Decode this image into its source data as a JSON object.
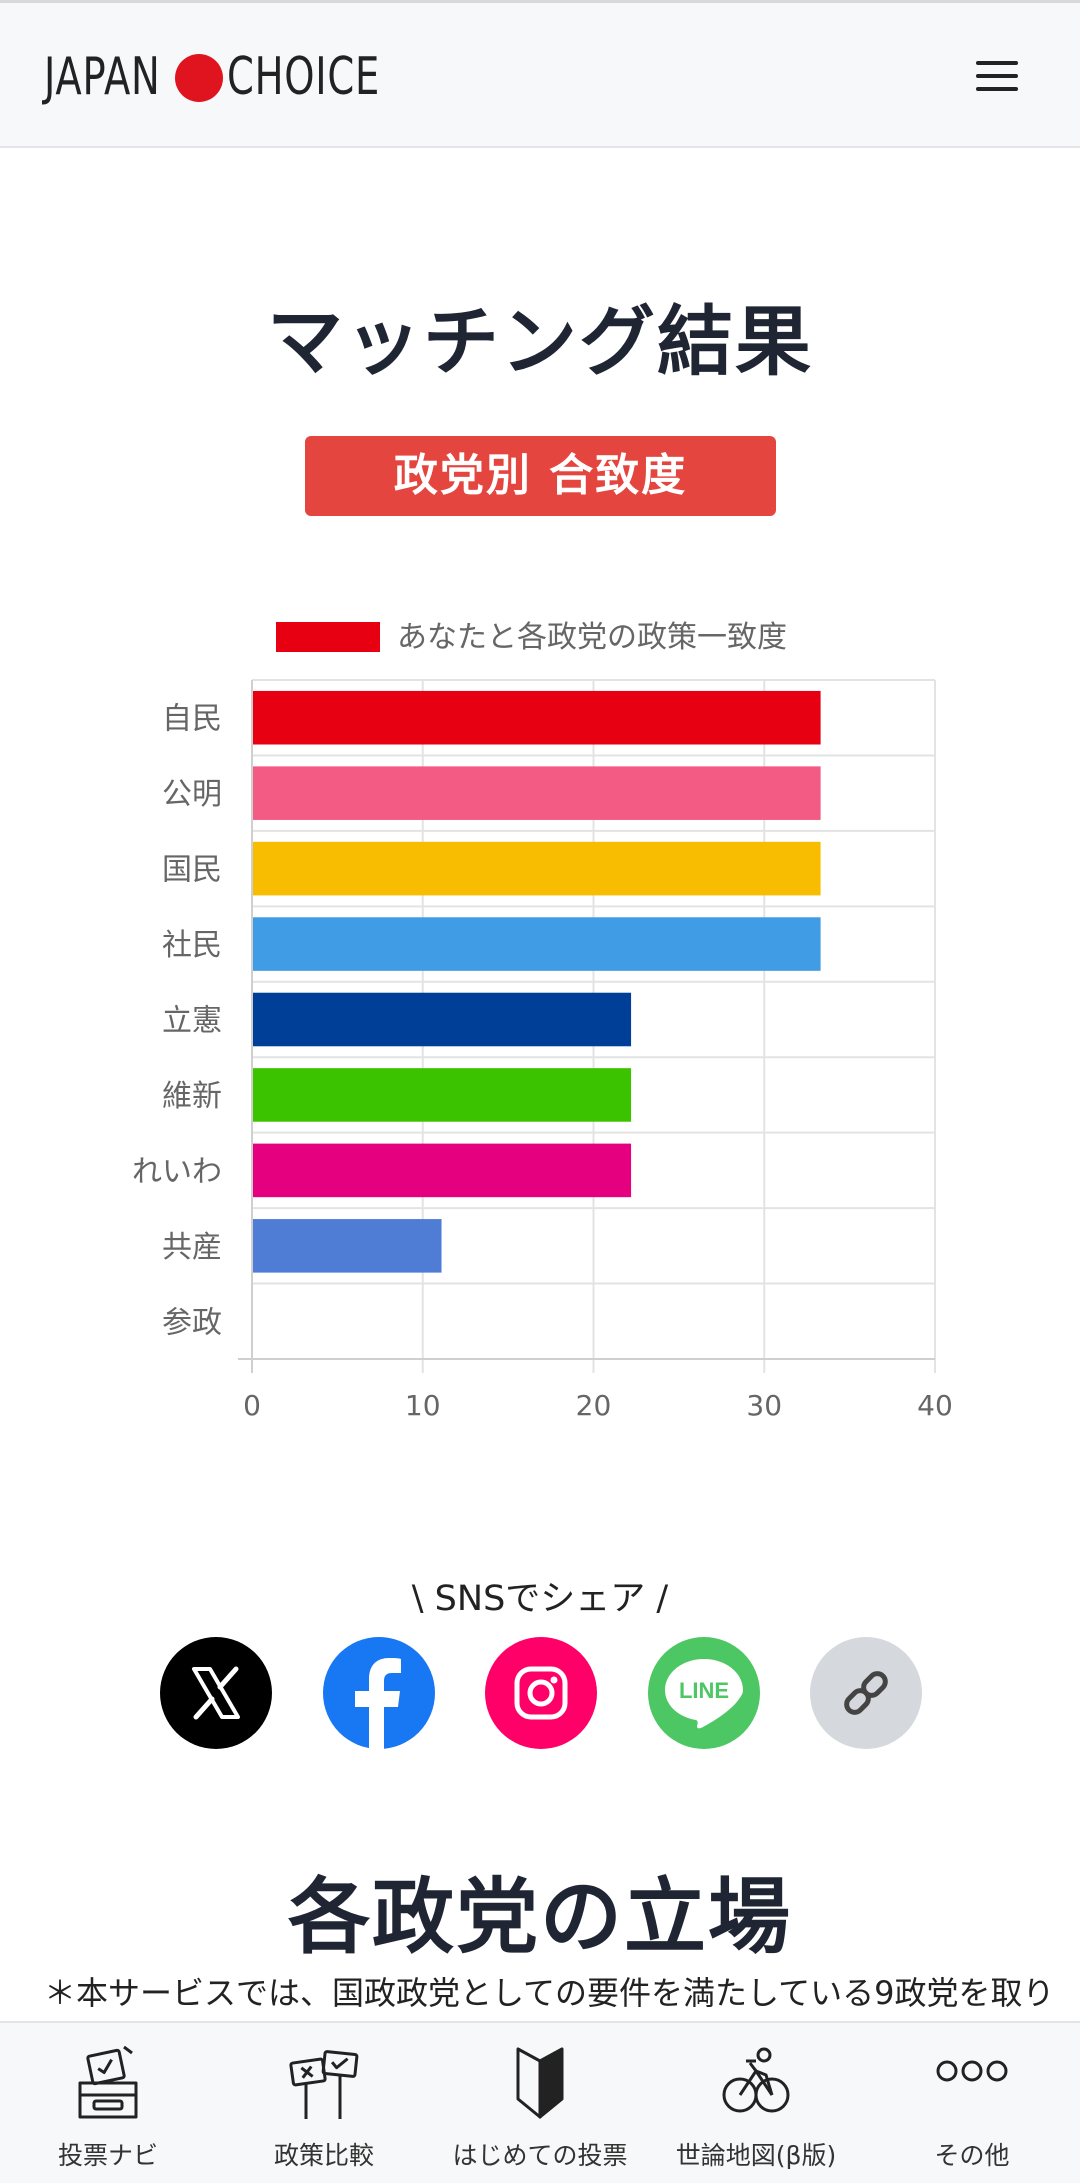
{
  "header": {
    "logo_left": "JAPAN",
    "logo_right": "CHOICE",
    "menu_icon": "hamburger-icon"
  },
  "main": {
    "title": "マッチング結果",
    "badge": "政党別 合致度"
  },
  "chart_data": {
    "type": "bar",
    "orientation": "horizontal",
    "categories": [
      "自民",
      "公明",
      "国民",
      "社民",
      "立憲",
      "維新",
      "れいわ",
      "共産",
      "参政"
    ],
    "series": [
      {
        "name": "あなたと各政党の政策一致度",
        "values": [
          33.3,
          33.3,
          33.3,
          33.3,
          22.2,
          22.2,
          22.2,
          11.1,
          0
        ],
        "colors": [
          "#e60012",
          "#f45b84",
          "#f8bd00",
          "#419ce6",
          "#003f98",
          "#3bc300",
          "#e4007f",
          "#4f7dd6",
          "#f18d00"
        ]
      }
    ],
    "xlim": [
      0,
      40
    ],
    "xticks": [
      0,
      10,
      20,
      30,
      40
    ],
    "legend_position": "top",
    "legend_color": "#e60012",
    "grid": true,
    "title": "",
    "xlabel": "",
    "ylabel": ""
  },
  "sns": {
    "title": "\\ SNSでシェア /",
    "buttons": [
      {
        "name": "x-icon",
        "bg": "#000000"
      },
      {
        "name": "facebook-icon",
        "bg": "#1877f2"
      },
      {
        "name": "instagram-icon",
        "bg": "#ff0069"
      },
      {
        "name": "line-icon",
        "bg": "#4cc764"
      },
      {
        "name": "link-icon",
        "bg": "#d5d8dc"
      }
    ]
  },
  "section2": {
    "title": "各政党の立場",
    "note": "＊本サービスでは、国政政党としての要件を満たしている9政党を取り"
  },
  "bottom_nav": [
    {
      "label": "投票ナビ",
      "icon": "ballot-box-icon"
    },
    {
      "label": "政策比較",
      "icon": "policy-compare-icon"
    },
    {
      "label": "はじめての投票",
      "icon": "beginner-mark-icon"
    },
    {
      "label": "世論地図(β版)",
      "icon": "opinion-map-icon"
    },
    {
      "label": "その他",
      "icon": "more-icon"
    }
  ]
}
